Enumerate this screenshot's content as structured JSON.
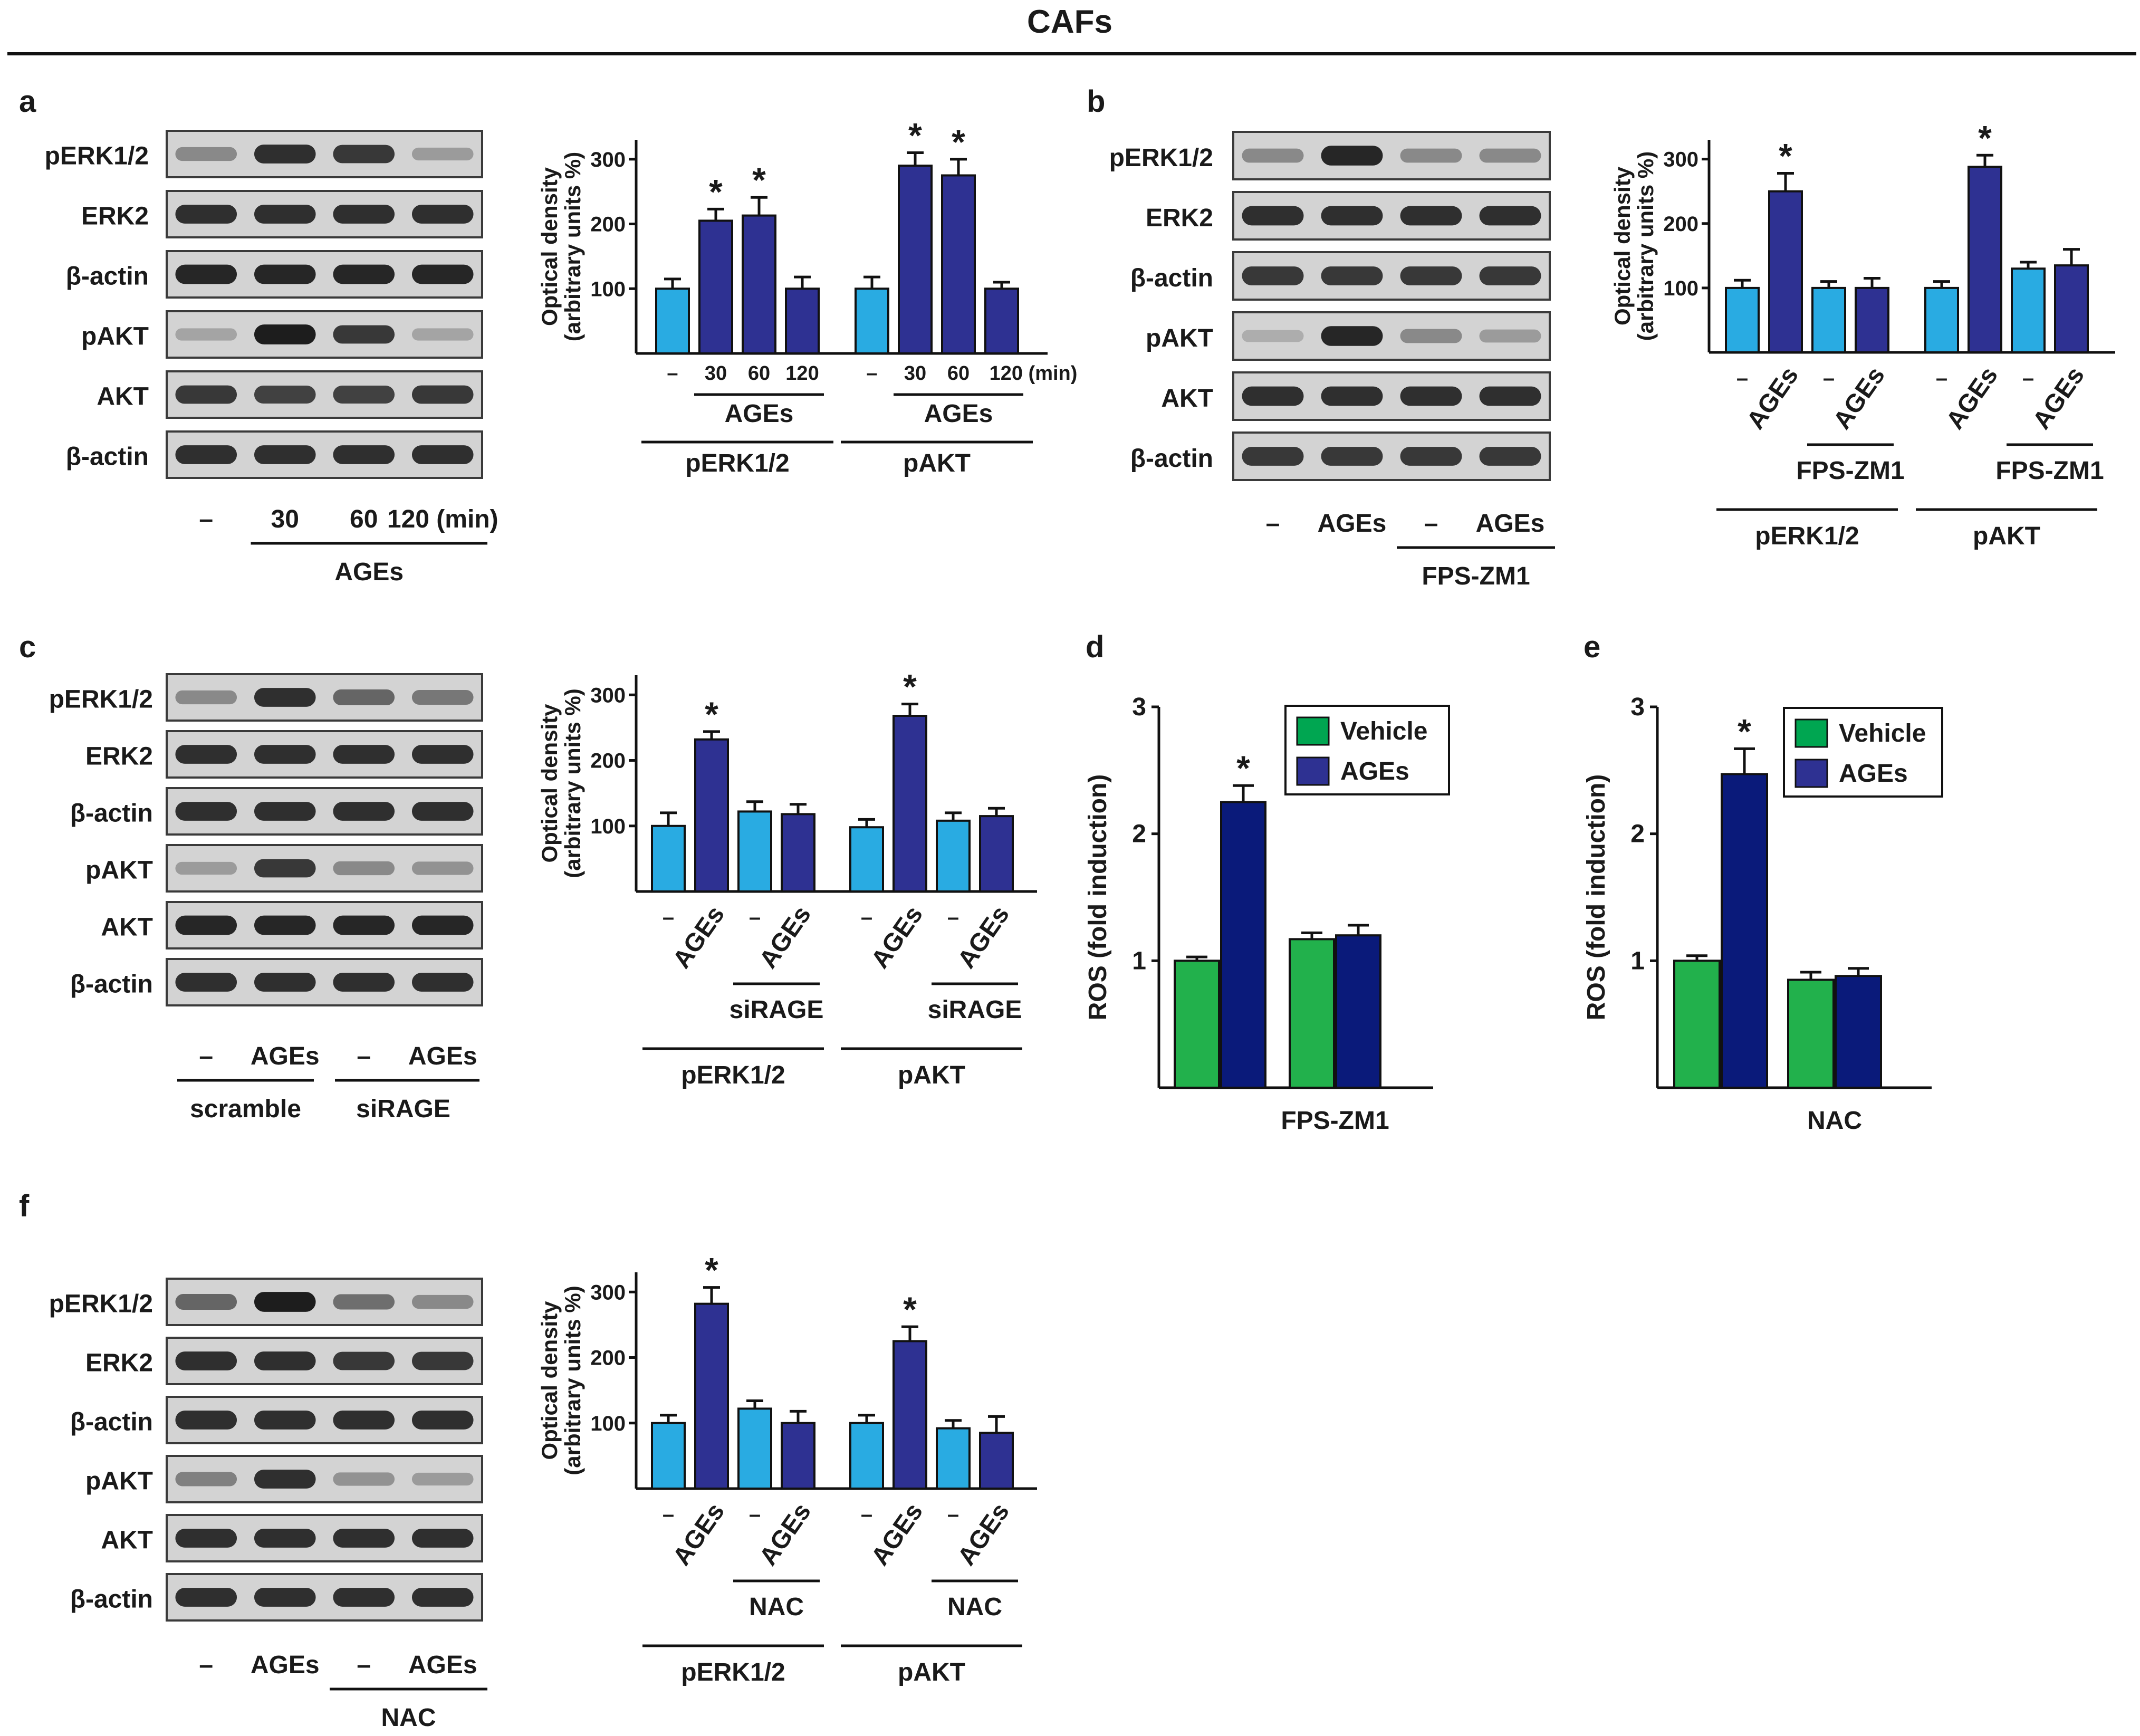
{
  "title": "CAFs",
  "colors": {
    "light_blue": "#29abe2",
    "dark_blue": "#2e3192",
    "green": "#22b14c",
    "navy": "#0a1a7a",
    "legend_green": "#00a651"
  },
  "panels": {
    "a": {
      "letter": "a",
      "blot": {
        "rows": [
          "pERK1/2",
          "ERK2",
          "β-actin",
          "pAKT",
          "AKT",
          "β-actin"
        ],
        "intensities": [
          [
            0.35,
            0.85,
            0.8,
            0.25
          ],
          [
            0.85,
            0.85,
            0.85,
            0.85
          ],
          [
            0.9,
            0.9,
            0.9,
            0.9
          ],
          [
            0.2,
            0.95,
            0.8,
            0.2
          ],
          [
            0.8,
            0.75,
            0.75,
            0.8
          ],
          [
            0.85,
            0.85,
            0.85,
            0.85
          ]
        ],
        "lanes": [
          "–",
          "30",
          "60",
          "120 (min)"
        ],
        "group": "AGEs"
      },
      "chart_data": {
        "type": "bar",
        "ylabel": "Optical density (arbitrary units %)",
        "ylim": [
          0,
          330
        ],
        "yticks": [
          100,
          200,
          300
        ],
        "x_labels": [
          "–",
          "30",
          "60",
          "120",
          "–",
          "30",
          "60",
          "120 (min)"
        ],
        "values": [
          100,
          205,
          213,
          100,
          100,
          290,
          275,
          100
        ],
        "errors": [
          15,
          18,
          28,
          18,
          18,
          20,
          25,
          10
        ],
        "significant": [
          false,
          true,
          true,
          false,
          false,
          true,
          true,
          false
        ],
        "colors": [
          "light",
          "dark",
          "dark",
          "dark",
          "light",
          "dark",
          "dark",
          "dark"
        ],
        "treatment_labels": [
          "AGEs",
          "AGEs"
        ],
        "group_labels": [
          "pERK1/2",
          "pAKT"
        ]
      }
    },
    "b": {
      "letter": "b",
      "blot": {
        "rows": [
          "pERK1/2",
          "ERK2",
          "β-actin",
          "pAKT",
          "AKT",
          "β-actin"
        ],
        "intensities": [
          [
            0.35,
            0.9,
            0.35,
            0.35
          ],
          [
            0.85,
            0.85,
            0.85,
            0.85
          ],
          [
            0.8,
            0.8,
            0.8,
            0.8
          ],
          [
            0.15,
            0.9,
            0.35,
            0.25
          ],
          [
            0.85,
            0.85,
            0.85,
            0.85
          ],
          [
            0.8,
            0.8,
            0.8,
            0.8
          ]
        ],
        "lanes": [
          "–",
          "AGEs",
          "–",
          "AGEs"
        ],
        "group": "FPS-ZM1"
      },
      "chart_data": {
        "type": "bar",
        "ylabel": "Optical density (arbitrary units %)",
        "ylim": [
          0,
          330
        ],
        "yticks": [
          100,
          200,
          300
        ],
        "x_labels": [
          "–",
          "AGEs",
          "–",
          "AGEs",
          "–",
          "AGEs",
          "–",
          "AGEs"
        ],
        "values": [
          100,
          250,
          100,
          100,
          100,
          288,
          130,
          135
        ],
        "errors": [
          12,
          28,
          10,
          15,
          10,
          18,
          10,
          25
        ],
        "significant": [
          false,
          true,
          false,
          false,
          false,
          true,
          false,
          false
        ],
        "colors": [
          "light",
          "dark",
          "light",
          "dark",
          "light",
          "dark",
          "light",
          "dark"
        ],
        "treatment_labels": [
          "FPS-ZM1",
          "FPS-ZM1"
        ],
        "group_labels": [
          "pERK1/2",
          "pAKT"
        ]
      }
    },
    "c": {
      "letter": "c",
      "blot": {
        "rows": [
          "pERK1/2",
          "ERK2",
          "β-actin",
          "pAKT",
          "AKT",
          "β-actin"
        ],
        "intensities": [
          [
            0.35,
            0.85,
            0.55,
            0.45
          ],
          [
            0.85,
            0.85,
            0.85,
            0.85
          ],
          [
            0.85,
            0.85,
            0.85,
            0.85
          ],
          [
            0.25,
            0.8,
            0.35,
            0.3
          ],
          [
            0.9,
            0.9,
            0.9,
            0.9
          ],
          [
            0.85,
            0.85,
            0.85,
            0.85
          ]
        ],
        "lanes": [
          "–",
          "AGEs",
          "–",
          "AGEs"
        ],
        "groups": [
          "scramble",
          "siRAGE"
        ]
      },
      "chart_data": {
        "type": "bar",
        "ylabel": "Optical density (arbitrary units %)",
        "ylim": [
          0,
          330
        ],
        "yticks": [
          100,
          200,
          300
        ],
        "x_labels": [
          "–",
          "AGEs",
          "–",
          "AGEs",
          "–",
          "AGEs",
          "–",
          "AGEs"
        ],
        "values": [
          100,
          232,
          122,
          118,
          98,
          268,
          108,
          115
        ],
        "errors": [
          20,
          12,
          15,
          15,
          12,
          18,
          12,
          12
        ],
        "significant": [
          false,
          true,
          false,
          false,
          false,
          true,
          false,
          false
        ],
        "colors": [
          "light",
          "dark",
          "light",
          "dark",
          "light",
          "dark",
          "light",
          "dark"
        ],
        "treatment_labels": [
          "siRAGE",
          "siRAGE"
        ],
        "group_labels": [
          "pERK1/2",
          "pAKT"
        ]
      }
    },
    "d": {
      "letter": "d",
      "chart_data": {
        "type": "bar",
        "ylabel": "ROS (fold induction)",
        "ylim": [
          0,
          3
        ],
        "yticks": [
          1,
          2,
          3
        ],
        "legend": [
          "Vehicle",
          "AGEs"
        ],
        "series": [
          {
            "name": "Vehicle",
            "values": [
              1.0,
              1.17
            ],
            "errors": [
              0.03,
              0.05
            ]
          },
          {
            "name": "AGEs",
            "values": [
              2.25,
              1.2
            ],
            "errors": [
              0.13,
              0.08
            ]
          }
        ],
        "significant": [
          false,
          true,
          false,
          false
        ],
        "x_label": "FPS-ZM1"
      }
    },
    "e": {
      "letter": "e",
      "chart_data": {
        "type": "bar",
        "ylabel": "ROS (fold induction)",
        "ylim": [
          0,
          3
        ],
        "yticks": [
          1,
          2,
          3
        ],
        "legend": [
          "Vehicle",
          "AGEs"
        ],
        "series": [
          {
            "name": "Vehicle",
            "values": [
              1.0,
              0.85
            ],
            "errors": [
              0.04,
              0.06
            ]
          },
          {
            "name": "AGEs",
            "values": [
              2.47,
              0.88
            ],
            "errors": [
              0.2,
              0.06
            ]
          }
        ],
        "significant": [
          false,
          true,
          false,
          false
        ],
        "x_label": "NAC"
      }
    },
    "f": {
      "letter": "f",
      "blot": {
        "rows": [
          "pERK1/2",
          "ERK2",
          "β-actin",
          "pAKT",
          "AKT",
          "β-actin"
        ],
        "intensities": [
          [
            0.55,
            0.95,
            0.5,
            0.35
          ],
          [
            0.85,
            0.85,
            0.8,
            0.8
          ],
          [
            0.85,
            0.85,
            0.85,
            0.85
          ],
          [
            0.4,
            0.85,
            0.3,
            0.25
          ],
          [
            0.85,
            0.85,
            0.85,
            0.85
          ],
          [
            0.85,
            0.85,
            0.85,
            0.85
          ]
        ],
        "lanes": [
          "–",
          "AGEs",
          "–",
          "AGEs"
        ],
        "group": "NAC"
      },
      "chart_data": {
        "type": "bar",
        "ylabel": "Optical density (arbitrary units %)",
        "ylim": [
          0,
          330
        ],
        "yticks": [
          100,
          200,
          300
        ],
        "x_labels": [
          "–",
          "AGEs",
          "–",
          "AGEs",
          "–",
          "AGEs",
          "–",
          "AGEs"
        ],
        "values": [
          100,
          282,
          122,
          100,
          100,
          225,
          92,
          85
        ],
        "errors": [
          12,
          25,
          12,
          18,
          12,
          22,
          12,
          25
        ],
        "significant": [
          false,
          true,
          false,
          false,
          false,
          true,
          false,
          false
        ],
        "colors": [
          "light",
          "dark",
          "light",
          "dark",
          "light",
          "dark",
          "light",
          "dark"
        ],
        "treatment_labels": [
          "NAC",
          "NAC"
        ],
        "group_labels": [
          "pERK1/2",
          "pAKT"
        ]
      }
    }
  }
}
